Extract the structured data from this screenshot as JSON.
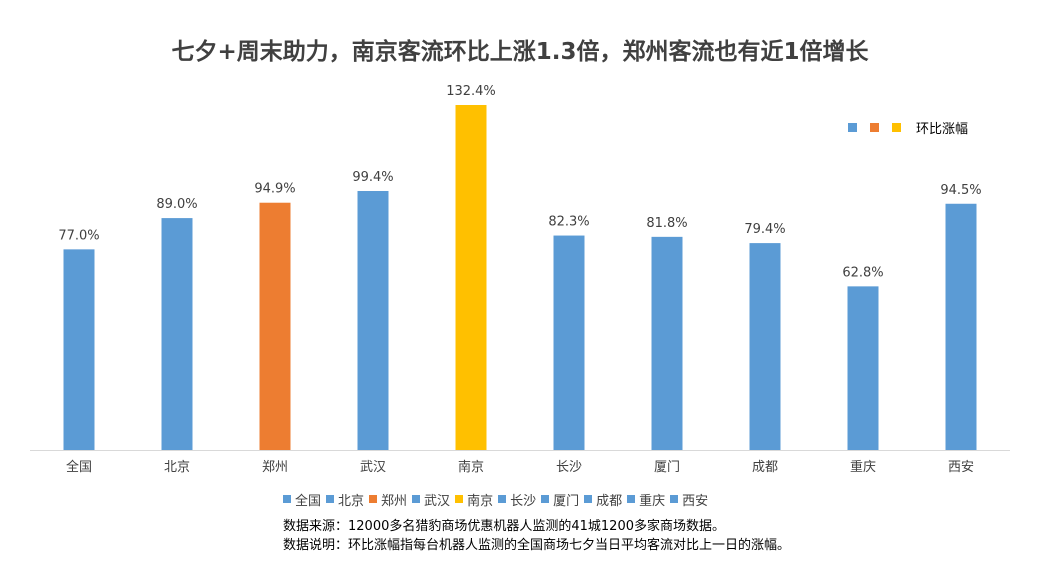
{
  "title": "七夕+周末助力，南京客流环比上涨1.3倍，郑州客流也有近1倍增长",
  "chart_data": {
    "type": "bar",
    "categories": [
      "全国",
      "北京",
      "郑州",
      "武汉",
      "南京",
      "长沙",
      "厦门",
      "成都",
      "重庆",
      "西安"
    ],
    "values": [
      77.0,
      89.0,
      94.9,
      99.4,
      132.4,
      82.3,
      81.8,
      79.4,
      62.8,
      94.5
    ],
    "value_labels": [
      "77.0%",
      "89.0%",
      "94.9%",
      "99.4%",
      "132.4%",
      "82.3%",
      "81.8%",
      "79.4%",
      "62.8%",
      "94.5%"
    ],
    "bar_colors": [
      "#5B9BD5",
      "#5B9BD5",
      "#ED7D31",
      "#5B9BD5",
      "#FFC000",
      "#5B9BD5",
      "#5B9BD5",
      "#5B9BD5",
      "#5B9BD5",
      "#5B9BD5"
    ],
    "series_name": "环比涨幅",
    "ylim": [
      0,
      140
    ],
    "grid": false,
    "legend_placement": "top-right and bottom"
  },
  "legend_corner": {
    "colors": [
      "#5B9BD5",
      "#ED7D31",
      "#FFC000"
    ],
    "label": "环比涨幅"
  },
  "footnotes": {
    "source": "数据来源：12000多名猎豹商场优惠机器人监测的41城1200多家商场数据。",
    "note": "数据说明：环比涨幅指每台机器人监测的全国商场七夕当日平均客流对比上一日的涨幅。"
  }
}
